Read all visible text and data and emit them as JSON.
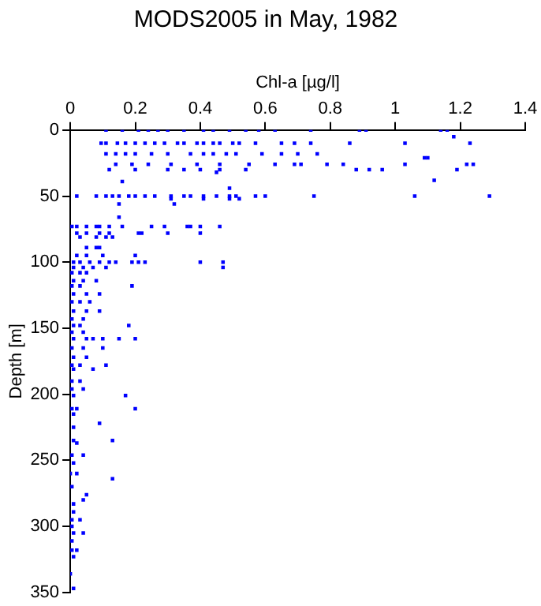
{
  "chart_data": {
    "type": "scatter",
    "title": "MODS2005 in May, 1982",
    "xlabel": "Chl-a [µg/l]",
    "ylabel": "Depth [m]",
    "xlim": [
      0,
      1.4
    ],
    "xticks": [
      0,
      0.2,
      0.4,
      0.6,
      0.8,
      1,
      1.2,
      1.4
    ],
    "ylim": [
      350,
      0
    ],
    "yticks": [
      0,
      50,
      100,
      150,
      200,
      250,
      300,
      350
    ],
    "grid": false,
    "legend": false,
    "marker": "square",
    "series": [
      {
        "color": "#0000ff",
        "x": [
          0.11,
          0.16,
          0.21,
          0.24,
          0.27,
          0.3,
          0.35,
          0.41,
          0.44,
          0.49,
          0.54,
          0.58,
          0.63,
          0.74,
          0.89,
          0.91,
          1.14,
          1.16,
          0.095,
          0.11,
          0.145,
          0.17,
          0.2,
          0.23,
          0.26,
          0.29,
          0.33,
          0.35,
          0.39,
          0.41,
          0.44,
          0.46,
          0.5,
          0.52,
          0.57,
          0.65,
          0.69,
          0.74,
          0.86,
          1.03,
          1.23,
          1.18,
          0.11,
          0.14,
          0.17,
          0.2,
          0.25,
          0.3,
          0.37,
          0.41,
          0.44,
          0.48,
          0.51,
          0.59,
          0.65,
          0.7,
          0.76,
          1.09,
          1.1,
          0.14,
          0.19,
          0.24,
          0.31,
          0.39,
          0.46,
          0.55,
          0.63,
          0.69,
          0.71,
          0.79,
          0.84,
          1.03,
          1.22,
          1.24,
          0.12,
          0.2,
          0.3,
          0.35,
          0.4,
          0.46,
          0.54,
          0.88,
          0.92,
          0.96,
          1.19,
          0.45,
          0.16,
          1.12,
          0.49,
          0.02,
          0.08,
          0.11,
          0.13,
          0.15,
          0.18,
          0.2,
          0.23,
          0.26,
          0.31,
          0.35,
          0.37,
          0.41,
          0.45,
          0.49,
          0.51,
          0.57,
          0.6,
          0.75,
          1.06,
          1.29,
          0.31,
          0.41,
          0.49,
          0.52,
          0.15,
          0.32,
          0.15,
          0.005,
          0.02,
          0.05,
          0.08,
          0.09,
          0.12,
          0.16,
          0.25,
          0.29,
          0.36,
          0.37,
          0.4,
          0.46,
          0.02,
          0.05,
          0.09,
          0.12,
          0.21,
          0.22,
          0.3,
          0.4,
          0.03,
          0.08,
          0.11,
          0.13,
          0.05,
          0.08,
          0.09,
          0.02,
          0.05,
          0.1,
          0.2,
          0.01,
          0.03,
          0.06,
          0.09,
          0.12,
          0.14,
          0.19,
          0.21,
          0.23,
          0.4,
          0.47,
          0.01,
          0.04,
          0.07,
          0.11,
          0.47,
          0.005,
          0.03,
          0.05,
          0.01,
          0.04,
          0.08,
          0.005,
          0.03,
          0.19,
          0.01,
          0.05,
          0.09,
          0.005,
          0.03,
          0.06,
          0.01,
          0.05,
          0.09,
          0.005,
          0.04,
          0.01,
          0.03,
          0.18,
          0.005,
          0.04,
          0.01,
          0.05,
          0.07,
          0.1,
          0.15,
          0.2,
          0.005,
          0.04,
          0.1,
          0.01,
          0.05,
          0.005,
          0.03,
          0.11,
          0.01,
          0.07,
          0.005,
          0.03,
          0.005,
          0.04,
          0.01,
          0.17,
          0.005,
          0.02,
          0.2,
          0.01,
          0.09,
          0.01,
          0.01,
          0.13,
          0.02,
          0.005,
          0.04,
          0.01,
          0,
          0.02,
          0.13,
          0.005,
          0.05,
          0.04,
          0.01,
          0.01,
          0.005,
          0.03,
          0.005,
          0.01,
          0.04,
          0.005,
          0.005,
          0.02,
          0.01,
          0,
          0.01
        ],
        "values": [
          0,
          0,
          0,
          0,
          0,
          0,
          0,
          0,
          0,
          0,
          0,
          0,
          0,
          0,
          0,
          0,
          0,
          0,
          10,
          10,
          10,
          10,
          10,
          10,
          10,
          10,
          10,
          10,
          10,
          10,
          10,
          10,
          10,
          10,
          10,
          10,
          10,
          10,
          10,
          10,
          10,
          5,
          18,
          18,
          18,
          18,
          18,
          18,
          18,
          18,
          18,
          18,
          18,
          18,
          18,
          18,
          18,
          21,
          21,
          26,
          26,
          26,
          26,
          26,
          26,
          26,
          26,
          26,
          26,
          26,
          26,
          26,
          26,
          26,
          30,
          30,
          30,
          30,
          30,
          30,
          30,
          30,
          30,
          30,
          30,
          32,
          39,
          38,
          44,
          50,
          50,
          50,
          50,
          50,
          50,
          50,
          50,
          50,
          50,
          50,
          50,
          50,
          50,
          50,
          50,
          50,
          50,
          50,
          50,
          50,
          52,
          52,
          52,
          52,
          56,
          56,
          66,
          73,
          73,
          73,
          73,
          73,
          73,
          73,
          73,
          73,
          73,
          73,
          73,
          73,
          78,
          78,
          78,
          78,
          78,
          78,
          78,
          78,
          81,
          81,
          81,
          81,
          89,
          89,
          89,
          95,
          95,
          95,
          95,
          100,
          100,
          100,
          100,
          100,
          100,
          100,
          100,
          100,
          100,
          100,
          104,
          104,
          104,
          104,
          104,
          108,
          108,
          108,
          114,
          114,
          114,
          118,
          118,
          118,
          124,
          124,
          124,
          130,
          130,
          130,
          137,
          137,
          137,
          143,
          143,
          148,
          148,
          148,
          153,
          153,
          158,
          158,
          158,
          158,
          158,
          158,
          165,
          165,
          165,
          172,
          172,
          178,
          178,
          178,
          181,
          181,
          190,
          190,
          196,
          196,
          201,
          201,
          211,
          211,
          211,
          215,
          222,
          225,
          235,
          235,
          237,
          246,
          246,
          252,
          260,
          260,
          264,
          270,
          276,
          280,
          283,
          289,
          295,
          295,
          300,
          305,
          305,
          311,
          318,
          318,
          323,
          336,
          347
        ]
      }
    ]
  }
}
